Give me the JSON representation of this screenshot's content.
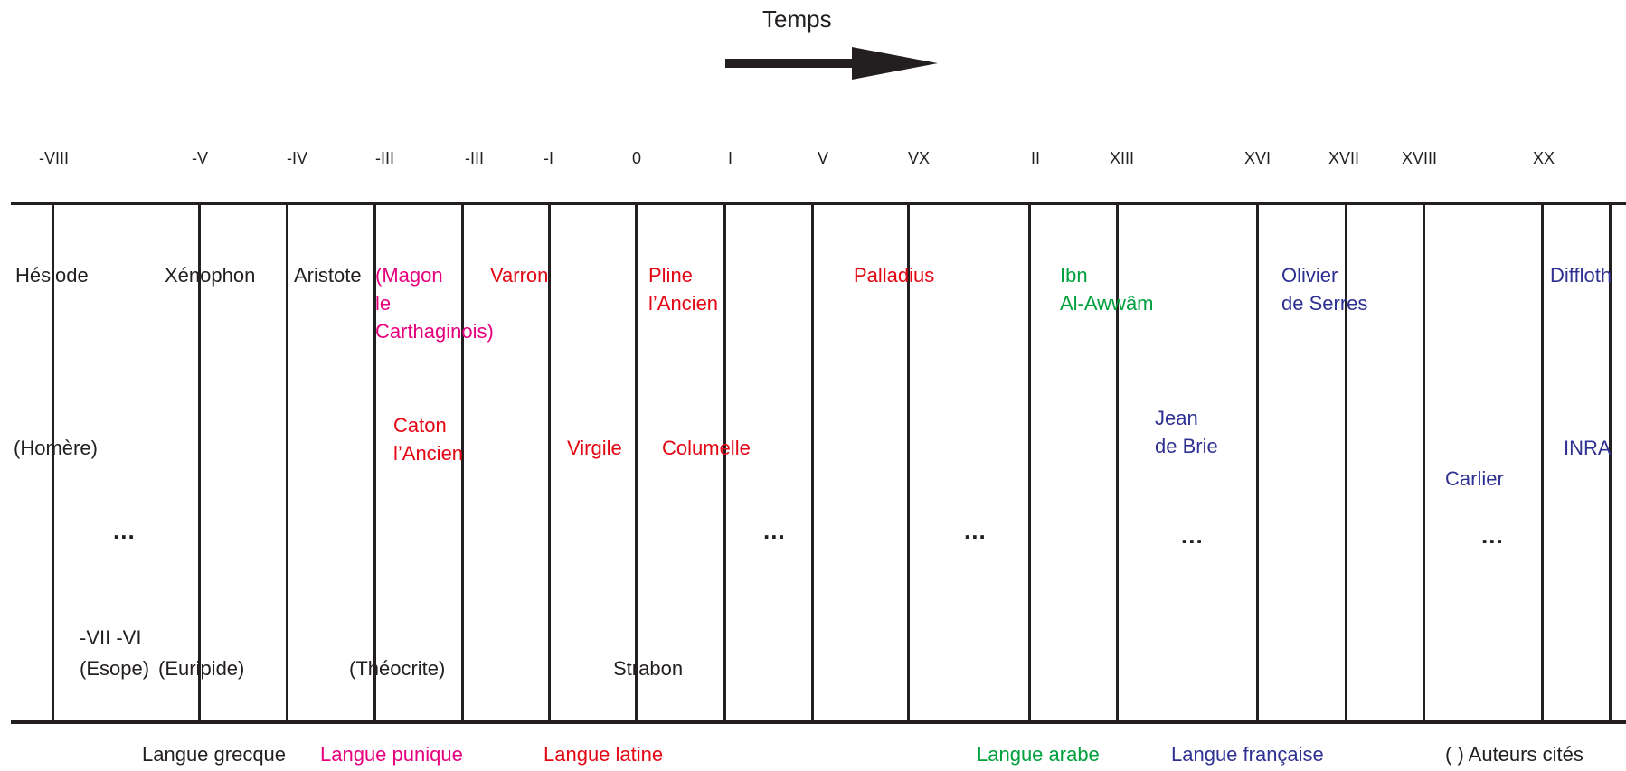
{
  "title": "Temps",
  "colors": {
    "black": "#231f20",
    "grec": "#231f20",
    "punique": "#e6007e",
    "latin": "#e30613",
    "arabe": "#00a03c",
    "francais": "#2e3192"
  },
  "ticks": [
    "-VIII",
    "-V",
    "-IV",
    "-III",
    "-III",
    "-I",
    "0",
    "I",
    "V",
    "VX",
    "II",
    "XIII",
    "XVI",
    "XVII",
    "XVIII",
    "XX"
  ],
  "authors": {
    "hesiode": "Hésiode",
    "xenophon": "Xénophon",
    "aristote": "Aristote",
    "magon": "(Magon\nle\nCarthaginois)",
    "varron": "Varron",
    "pline": "Pline\nl’Ancien",
    "palladius": "Palladius",
    "ibn": "Ibn\nAl-Awwâm",
    "olivier": "Olivier\nde Serres",
    "diffloth": "Diffloth",
    "homere": "(Homère)",
    "caton": "Caton\nl’Ancien",
    "virgile": "Virgile",
    "columelle": "Columelle",
    "jean": "Jean\nde Brie",
    "inra": "INRA",
    "carlier": "Carlier",
    "vii_vi": "-VII -VI",
    "esope": "(Esope)",
    "euripide": "(Euripide)",
    "theocrite": "(Théocrite)",
    "strabon": "Strabon"
  },
  "ellipsis": "...",
  "legend": {
    "grecque": "Langue grecque",
    "punique": "Langue punique",
    "latine": "Langue latine",
    "arabe": "Langue arabe",
    "francaise": "Langue française",
    "cites": "( ) Auteurs cités"
  }
}
